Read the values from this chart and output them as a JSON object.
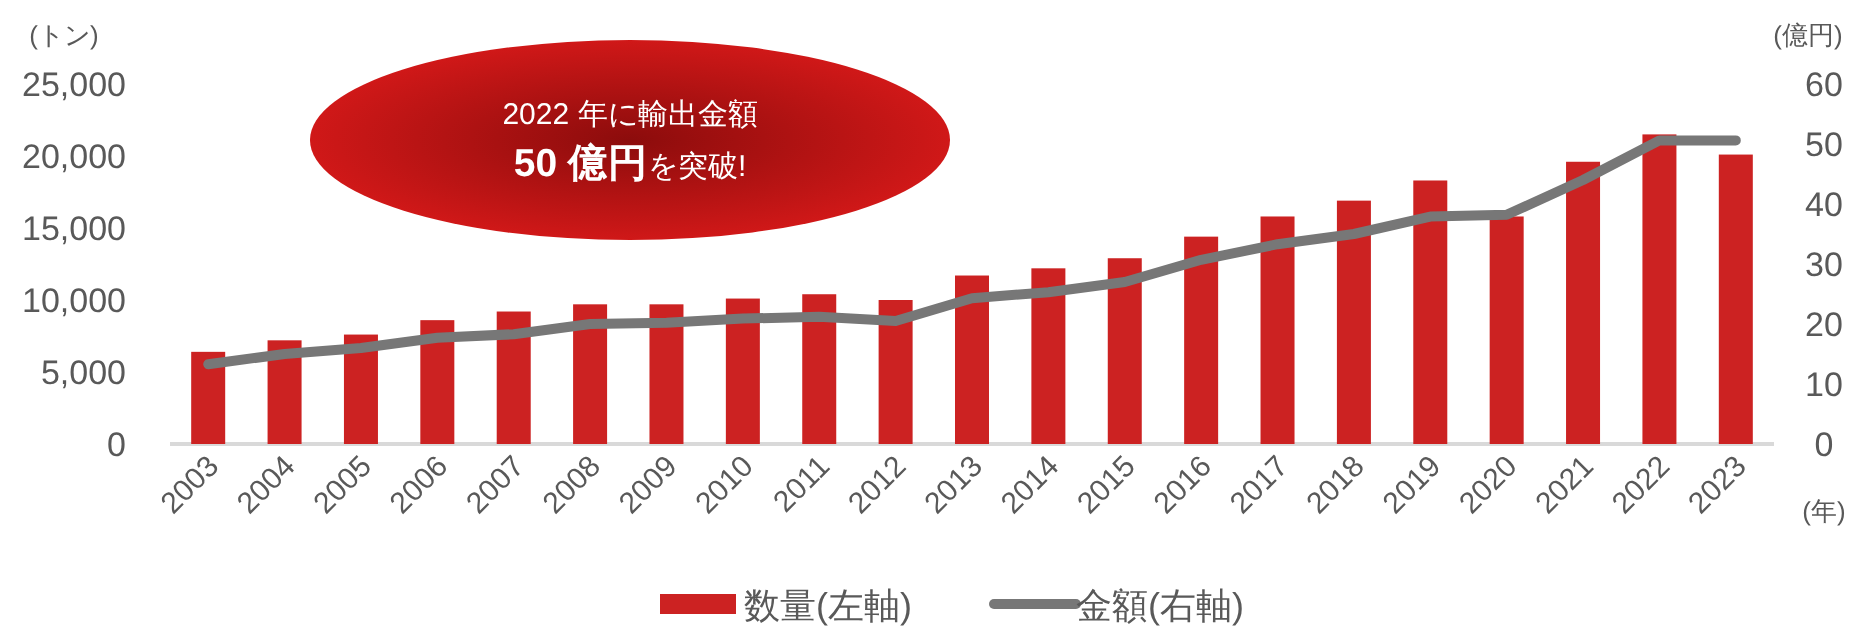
{
  "chart_data": {
    "type": "bar",
    "categories": [
      "2003",
      "2004",
      "2005",
      "2006",
      "2007",
      "2008",
      "2009",
      "2010",
      "2011",
      "2012",
      "2013",
      "2014",
      "2015",
      "2016",
      "2017",
      "2018",
      "2019",
      "2020",
      "2021",
      "2022",
      "2023"
    ],
    "series": [
      {
        "name": "数量(左軸)",
        "color": "#cc2222",
        "values": [
          6400,
          7200,
          7600,
          8600,
          9200,
          9700,
          9700,
          10100,
          10400,
          10000,
          11700,
          12200,
          12900,
          14400,
          15800,
          16900,
          18300,
          15800,
          19600,
          21500,
          20100
        ]
      },
      {
        "name": "金額(右軸)",
        "type": "line",
        "axis": "y2",
        "color": "#777777",
        "values": [
          13.3,
          15,
          16,
          17.7,
          18.3,
          20,
          20.2,
          20.9,
          21.2,
          20.5,
          24.3,
          25.3,
          27,
          30.7,
          33.3,
          35,
          37.9,
          38.2,
          44,
          50.6,
          50.6
        ]
      }
    ],
    "ylabel": "(トン)",
    "y2label": "(億円)",
    "xlabel": "(年)",
    "ylim": [
      0,
      25000
    ],
    "yticks": [
      0,
      {
        "value": 5000,
        "label": "5,000"
      },
      {
        "value": 10000,
        "label": "10,000"
      },
      {
        "value": 15000,
        "label": "15,000"
      },
      {
        "value": 20000,
        "label": "20,000"
      },
      {
        "value": 25000,
        "label": "25,000"
      }
    ],
    "y2lim": [
      0,
      60
    ],
    "y2ticks": [
      0,
      10,
      20,
      30,
      40,
      50,
      60
    ],
    "annotations": [
      "2022 年に輸出金額",
      "**50 億円**を突破!"
    ],
    "legend": "bottom",
    "grid": false
  }
}
